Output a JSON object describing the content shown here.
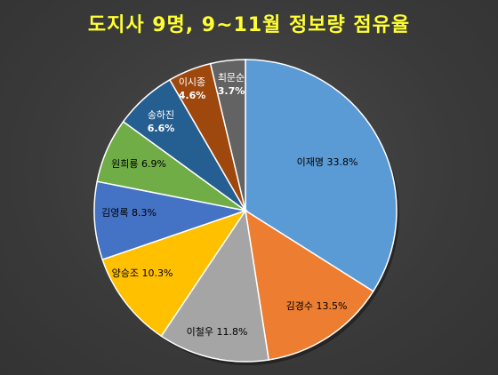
{
  "chart_data": {
    "type": "pie",
    "title": "도지사 9명, 9~11월 정보량 점유율",
    "slices": [
      {
        "name": "이재명",
        "value": 33.8,
        "label": "이재명 33.8%",
        "color": "#5b9bd5"
      },
      {
        "name": "김경수",
        "value": 13.5,
        "label": "김경수 13.5%",
        "color": "#ed7d31"
      },
      {
        "name": "이철우",
        "value": 11.8,
        "label": "이철우 11.8%",
        "color": "#a5a5a5"
      },
      {
        "name": "양승조",
        "value": 10.3,
        "label": "양승조 10.3%",
        "color": "#ffc000"
      },
      {
        "name": "김영록",
        "value": 8.3,
        "label": "김영록 8.3%",
        "color": "#4472c4"
      },
      {
        "name": "원희룡",
        "value": 6.9,
        "label": "원희룡 6.9%",
        "color": "#70ad47"
      },
      {
        "name": "송하진",
        "value": 6.6,
        "label": "송하진\n6.6%",
        "color": "#255e91"
      },
      {
        "name": "이시종",
        "value": 4.6,
        "label": "이시종\n4.6%",
        "color": "#9e480e"
      },
      {
        "name": "최문순",
        "value": 3.7,
        "label": "최문순\n3.7%",
        "color": "#636363"
      }
    ]
  }
}
